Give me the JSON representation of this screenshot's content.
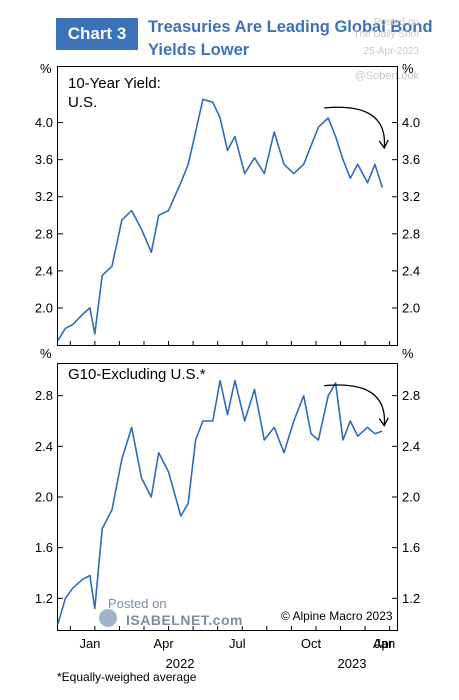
{
  "header": {
    "badge": "Chart 3",
    "title_line1": "Treasuries Are Leading Global Bond",
    "title_line2": "Yields Lower"
  },
  "watermark": {
    "posted_on": "Posted on",
    "source": "The Daily Shot",
    "date": "25-Apr-2023",
    "handle": "@SoberLook"
  },
  "footer": {
    "isabel_posted": "Posted on",
    "isabel_site": "ISABELNET.com",
    "copyright": "© Alpine Macro 2023",
    "note": "*Equally-weighed average"
  },
  "axis": {
    "x_ticks": [
      "Jan",
      "Apr",
      "Jul",
      "Oct",
      "Jan",
      "Apr"
    ],
    "years": [
      "2022",
      "2023"
    ]
  },
  "chart_data": [
    {
      "type": "line",
      "label": "10-Year Yield:\nU.S.",
      "label_line1": "10-Year Yield:",
      "label_line2": "U.S.",
      "unit": "%",
      "ylim": [
        1.6,
        4.6
      ],
      "yticks": [
        2.0,
        2.4,
        2.8,
        3.2,
        3.6,
        4.0
      ],
      "ytick_labels": [
        "2.0",
        "2.4",
        "2.8",
        "3.2",
        "3.6",
        "4.0"
      ],
      "x": [
        0,
        0.3,
        0.6,
        1.0,
        1.3,
        1.5,
        1.8,
        2.2,
        2.6,
        3.0,
        3.4,
        3.8,
        4.1,
        4.5,
        5.0,
        5.3,
        5.6,
        5.9,
        6.3,
        6.6,
        6.9,
        7.2,
        7.6,
        8.0,
        8.4,
        8.8,
        9.2,
        9.6,
        10.0,
        10.3,
        10.6,
        11.0,
        11.3,
        11.6,
        11.9,
        12.2,
        12.6,
        12.9,
        13.2
      ],
      "values": [
        1.65,
        1.78,
        1.82,
        1.93,
        2.0,
        1.72,
        2.35,
        2.45,
        2.95,
        3.05,
        2.85,
        2.6,
        3.0,
        3.05,
        3.35,
        3.55,
        3.9,
        4.25,
        4.22,
        4.05,
        3.7,
        3.85,
        3.45,
        3.62,
        3.45,
        3.9,
        3.55,
        3.45,
        3.55,
        3.75,
        3.95,
        4.05,
        3.85,
        3.6,
        3.4,
        3.55,
        3.35,
        3.55,
        3.3
      ],
      "arrow": "down"
    },
    {
      "type": "line",
      "label": "G10-Excluding U.S.*",
      "unit": "%",
      "ylim": [
        0.95,
        3.05
      ],
      "yticks": [
        1.2,
        1.6,
        2.0,
        2.4,
        2.8
      ],
      "ytick_labels": [
        "1.2",
        "1.6",
        "2.0",
        "2.4",
        "2.8"
      ],
      "x": [
        0,
        0.3,
        0.6,
        1.0,
        1.3,
        1.5,
        1.8,
        2.2,
        2.6,
        3.0,
        3.4,
        3.8,
        4.1,
        4.5,
        5.0,
        5.3,
        5.6,
        5.9,
        6.3,
        6.6,
        6.9,
        7.2,
        7.6,
        8.0,
        8.4,
        8.8,
        9.2,
        9.6,
        10.0,
        10.3,
        10.6,
        11.0,
        11.3,
        11.6,
        11.9,
        12.2,
        12.6,
        12.9,
        13.2
      ],
      "values": [
        1.0,
        1.2,
        1.28,
        1.35,
        1.38,
        1.12,
        1.75,
        1.9,
        2.3,
        2.55,
        2.15,
        2.0,
        2.35,
        2.2,
        1.85,
        1.95,
        2.45,
        2.6,
        2.6,
        2.92,
        2.65,
        2.92,
        2.6,
        2.85,
        2.45,
        2.55,
        2.35,
        2.6,
        2.8,
        2.5,
        2.45,
        2.8,
        2.9,
        2.45,
        2.6,
        2.48,
        2.55,
        2.5,
        2.52
      ],
      "arrow": "down"
    }
  ]
}
